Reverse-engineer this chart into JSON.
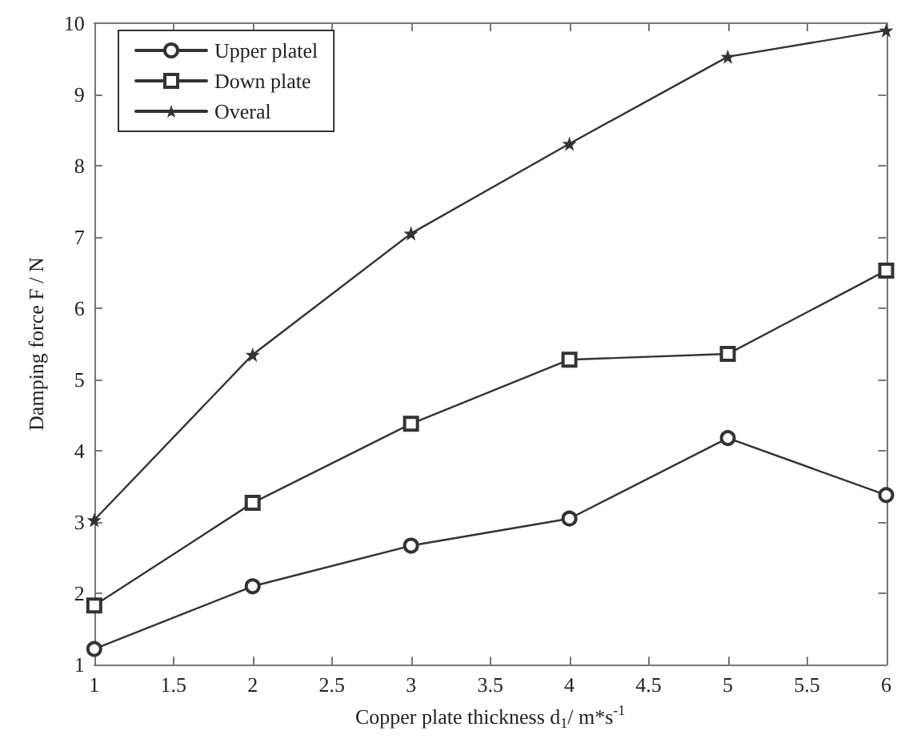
{
  "chart_data": {
    "type": "line",
    "xlabel": "Copper plate thickness d$_{1}$/ m*s$^{-1}$",
    "ylabel": "Damping force F / N",
    "x": [
      1,
      2,
      3,
      4,
      5,
      6
    ],
    "series": [
      {
        "name": "Upper platel",
        "color": "#333333",
        "marker": "circle",
        "values": [
          1.22,
          2.1,
          2.67,
          3.05,
          4.18,
          3.38
        ]
      },
      {
        "name": "Down plate",
        "color": "#333333",
        "marker": "square",
        "values": [
          1.83,
          3.27,
          4.38,
          5.28,
          5.36,
          6.53
        ]
      },
      {
        "name": "Overal",
        "color": "#333333",
        "marker": "star",
        "values": [
          3.03,
          5.35,
          7.05,
          8.31,
          9.53,
          9.9
        ]
      }
    ],
    "xlim": [
      1,
      6
    ],
    "xticks": [
      1,
      1.5,
      2,
      2.5,
      3,
      3.5,
      4,
      4.5,
      5,
      5.5,
      6
    ],
    "ylim": [
      1,
      10
    ],
    "yticks": [
      1,
      2,
      3,
      4,
      5,
      6,
      7,
      8,
      9,
      10
    ],
    "grid": false,
    "legend": "top left",
    "line_style": "solid"
  }
}
